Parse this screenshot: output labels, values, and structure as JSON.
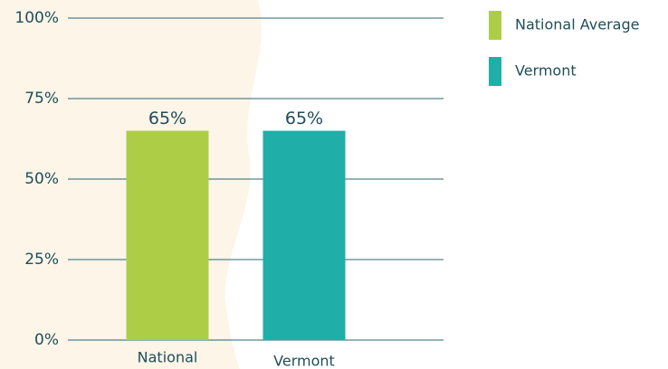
{
  "chart_data": {
    "type": "bar",
    "categories": [
      "National",
      "Vermont"
    ],
    "values": [
      65,
      65
    ],
    "value_labels": [
      "65%",
      "65%"
    ],
    "colors": [
      "#aecd47",
      "#1fafa8"
    ],
    "legend": [
      "National Average",
      "Vermont"
    ],
    "ylim": [
      0,
      100
    ],
    "yticks": [
      {
        "value": 0,
        "label": "0%"
      },
      {
        "value": 25,
        "label": "25%"
      },
      {
        "value": 50,
        "label": "50%"
      },
      {
        "value": 75,
        "label": "75%"
      },
      {
        "value": 100,
        "label": "100%"
      }
    ],
    "grid": true
  }
}
